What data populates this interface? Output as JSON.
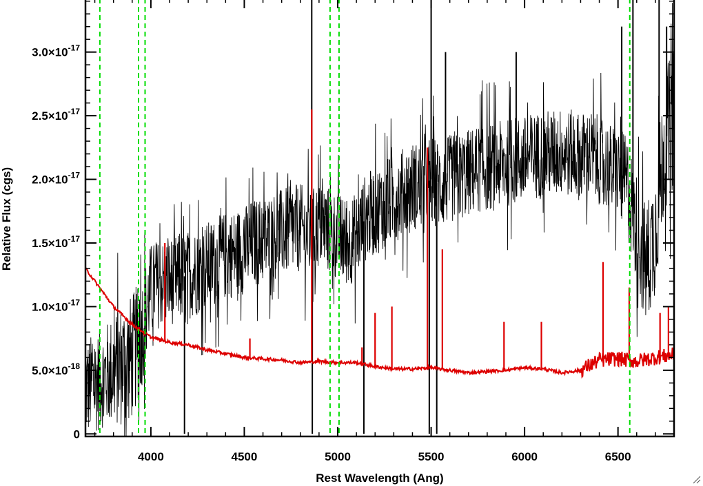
{
  "chart_data": {
    "type": "line",
    "title": "",
    "xlabel": "Rest Wavelength (Ang)",
    "ylabel": "Relative Flux (cgs)",
    "xlim": [
      3650,
      6800
    ],
    "ylim": [
      -2e-19,
      3.42e-17
    ],
    "x_ticks": [
      {
        "value": 4000,
        "label": "4000"
      },
      {
        "value": 4500,
        "label": "4500"
      },
      {
        "value": 5000,
        "label": "5000"
      },
      {
        "value": 5500,
        "label": "5500"
      },
      {
        "value": 6000,
        "label": "6000"
      },
      {
        "value": 6500,
        "label": "6500"
      }
    ],
    "x_minor_step": 100,
    "y_ticks": [
      {
        "value": 0,
        "mant": "0",
        "exp": ""
      },
      {
        "value": 5e-18,
        "mant": "5.0×10",
        "exp": "-18"
      },
      {
        "value": 1e-17,
        "mant": "1.0×10",
        "exp": "-17"
      },
      {
        "value": 1.5e-17,
        "mant": "1.5×10",
        "exp": "-17"
      },
      {
        "value": 2e-17,
        "mant": "2.0×10",
        "exp": "-17"
      },
      {
        "value": 2.5e-17,
        "mant": "2.5×10",
        "exp": "-17"
      },
      {
        "value": 3e-17,
        "mant": "3.0×10",
        "exp": "-17"
      }
    ],
    "y_minor_step": 1e-18,
    "grid": false,
    "legend": "none",
    "reference_lines": {
      "color": "#00dd00",
      "style": "dashed",
      "x": [
        3727,
        3934,
        3969,
        4959,
        5007,
        6563
      ]
    },
    "series": [
      {
        "color": "#000000",
        "style": "noisy spectrum",
        "x": [
          3650,
          3700,
          3750,
          3800,
          3850,
          3900,
          3950,
          4000,
          4050,
          4100,
          4150,
          4200,
          4250,
          4300,
          4350,
          4400,
          4450,
          4500,
          4550,
          4600,
          4650,
          4700,
          4750,
          4800,
          4850,
          4900,
          4950,
          5000,
          5050,
          5100,
          5150,
          5200,
          5250,
          5300,
          5350,
          5400,
          5450,
          5500,
          5550,
          5600,
          5650,
          5700,
          5750,
          5800,
          5850,
          5900,
          5950,
          6000,
          6050,
          6100,
          6150,
          6200,
          6250,
          6300,
          6350,
          6400,
          6450,
          6500,
          6550,
          6600,
          6650,
          6700,
          6750,
          6800
        ],
        "y": [
          3.5e-18,
          4e-18,
          4.5e-18,
          5e-18,
          5.5e-18,
          6e-18,
          8e-18,
          1.15e-17,
          1.18e-17,
          1.2e-17,
          1.22e-17,
          1.25e-17,
          1.28e-17,
          1.32e-17,
          1.35e-17,
          1.4e-17,
          1.42e-17,
          1.45e-17,
          1.5e-17,
          1.52e-17,
          1.55e-17,
          1.58e-17,
          1.6e-17,
          1.62e-17,
          1.55e-17,
          1.65e-17,
          1.6e-17,
          1.55e-17,
          1.5e-17,
          1.55e-17,
          1.7e-17,
          1.75e-17,
          1.8e-17,
          1.85e-17,
          1.9e-17,
          1.95e-17,
          1.95e-17,
          2e-17,
          1.95e-17,
          2e-17,
          2.02e-17,
          2.05e-17,
          2.08e-17,
          2.1e-17,
          2.1e-17,
          2.12e-17,
          2.15e-17,
          2.15e-17,
          2.18e-17,
          2.2e-17,
          2.2e-17,
          2.22e-17,
          2.2e-17,
          2.18e-17,
          2.2e-17,
          2.15e-17,
          2.1e-17,
          2.05e-17,
          1.95e-17,
          1.6e-17,
          1.3e-17,
          1.6e-17,
          2.3e-17,
          2.5e-17
        ],
        "noise": [
          4e-18,
          4e-18,
          4e-18,
          4.5e-18,
          5e-18,
          5e-18,
          4.5e-18,
          3.5e-18,
          3.5e-18,
          3.5e-18,
          3.5e-18,
          3.5e-18,
          3.5e-18,
          3.5e-18,
          3.5e-18,
          3.5e-18,
          3.5e-18,
          3.5e-18,
          3.5e-18,
          3.5e-18,
          3.5e-18,
          3.5e-18,
          3.5e-18,
          3.5e-18,
          3.5e-18,
          3.5e-18,
          3.5e-18,
          3.5e-18,
          3.5e-18,
          3.5e-18,
          3.5e-18,
          3.5e-18,
          3.5e-18,
          3.5e-18,
          3.5e-18,
          3.5e-18,
          3.5e-18,
          3.5e-18,
          3.5e-18,
          3.5e-18,
          3.5e-18,
          3.5e-18,
          3.5e-18,
          3.5e-18,
          3.5e-18,
          3.5e-18,
          3.5e-18,
          3.5e-18,
          3.5e-18,
          3.5e-18,
          3.5e-18,
          3.5e-18,
          3.5e-18,
          3.5e-18,
          3.5e-18,
          3.5e-18,
          3.5e-18,
          3.5e-18,
          4e-18,
          4.5e-18,
          5e-18,
          5e-18,
          5.5e-18,
          5.5e-18
        ],
        "spikes": [
          {
            "x": 4180,
            "y": 0.0
          },
          {
            "x": 4861,
            "y": 3.42e-17
          },
          {
            "x": 4864,
            "y": 0.0
          },
          {
            "x": 5140,
            "y": 0.0
          },
          {
            "x": 5490,
            "y": 0.0
          },
          {
            "x": 5500,
            "y": 3.42e-17
          },
          {
            "x": 5530,
            "y": 0.0
          },
          {
            "x": 5577,
            "y": 3e-17
          },
          {
            "x": 5955,
            "y": 3e-17
          },
          {
            "x": 6520,
            "y": 3.2e-17
          },
          {
            "x": 6580,
            "y": 3.42e-17
          },
          {
            "x": 6720,
            "y": 3.42e-17
          },
          {
            "x": 6760,
            "y": 3.2e-17
          }
        ]
      },
      {
        "color": "#dd0000",
        "style": "model spectrum",
        "x": [
          3650,
          3700,
          3750,
          3800,
          3850,
          3900,
          3950,
          4000,
          4050,
          4100,
          4200,
          4300,
          4400,
          4500,
          4600,
          4700,
          4800,
          4900,
          5000,
          5100,
          5200,
          5300,
          5400,
          5500,
          5600,
          5700,
          5800,
          5900,
          6000,
          6100,
          6200,
          6300,
          6400,
          6500,
          6600,
          6700,
          6800
        ],
        "y": [
          1.3e-17,
          1.2e-17,
          1.1e-17,
          1e-17,
          9.3e-18,
          8.6e-18,
          8.1e-18,
          7.6e-18,
          7.4e-18,
          7.2e-18,
          7e-18,
          6.6e-18,
          6.3e-18,
          6e-18,
          5.9e-18,
          5.8e-18,
          5.6e-18,
          5.7e-18,
          5.6e-18,
          5.6e-18,
          5.3e-18,
          5.1e-18,
          5.1e-18,
          5.2e-18,
          5e-18,
          4.8e-18,
          4.9e-18,
          5e-18,
          5.2e-18,
          5.1e-18,
          4.8e-18,
          5e-18,
          5.8e-18,
          5.9e-18,
          5.7e-18,
          6e-18,
          6.2e-18
        ],
        "spikes": [
          {
            "x": 4075,
            "y": 1.5e-17
          },
          {
            "x": 4530,
            "y": 7.5e-18
          },
          {
            "x": 4861,
            "y": 2.55e-17
          },
          {
            "x": 5130,
            "y": 6.8e-18
          },
          {
            "x": 5200,
            "y": 9.5e-18
          },
          {
            "x": 5290,
            "y": 1e-17
          },
          {
            "x": 5480,
            "y": 2.25e-17
          },
          {
            "x": 5560,
            "y": 1.45e-17
          },
          {
            "x": 5890,
            "y": 8.8e-18
          },
          {
            "x": 6090,
            "y": 8.8e-18
          },
          {
            "x": 6420,
            "y": 1.35e-17
          },
          {
            "x": 6560,
            "y": 1.15e-17
          },
          {
            "x": 6725,
            "y": 9.5e-18
          },
          {
            "x": 6770,
            "y": 1e-17
          }
        ]
      }
    ]
  }
}
